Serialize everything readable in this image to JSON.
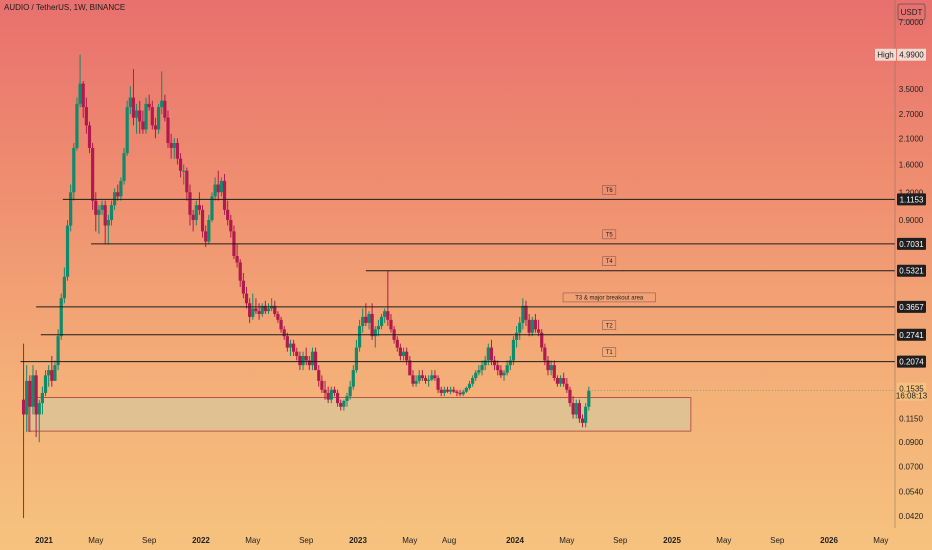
{
  "header": {
    "title": "AUDIO / TetherUS, 1W, BINANCE",
    "currency": "USDT"
  },
  "colors": {
    "up": "#0f8a6a",
    "down": "#b01a4e",
    "line": "#1c1c1c",
    "zone_fill": "#d9c59a",
    "zone_border": "#b23a3a",
    "price_tag": "#f6c27e"
  },
  "chart_data": {
    "type": "candlestick",
    "title": "AUDIO / TetherUS, 1W, BINANCE",
    "yscale": "log",
    "ylim": [
      0.037,
      8.8
    ],
    "y_ticks": [
      7.0,
      3.5,
      2.7,
      2.1,
      1.6,
      1.2,
      0.9,
      0.115,
      0.09,
      0.07,
      0.054,
      0.042
    ],
    "y_tick_labels": [
      "7.0000",
      "3.5000",
      "2.7000",
      "2.1000",
      "1.6000",
      "1.2000",
      "0.9000",
      "0.1150",
      "0.0900",
      "0.0700",
      "0.0540",
      "0.0420"
    ],
    "x_tick_labels": [
      "2021",
      "May",
      "Sep",
      "2022",
      "May",
      "Sep",
      "2023",
      "May",
      "Aug",
      "2024",
      "May",
      "Sep",
      "2025",
      "May",
      "Sep",
      "2026",
      "May"
    ],
    "x_tick_dates": [
      2021.0,
      2021.33,
      2021.67,
      2022.0,
      2022.33,
      2022.67,
      2023.0,
      2023.33,
      2023.58,
      2024.0,
      2024.33,
      2024.67,
      2025.0,
      2025.33,
      2025.67,
      2026.0,
      2026.33
    ],
    "high_marker": {
      "label": "High",
      "value": "4.9900"
    },
    "current_price": {
      "value": "0.1535",
      "countdown": "16:08:13"
    },
    "targets": [
      {
        "name": "T6",
        "value": "1.1153",
        "start": 2021.12
      },
      {
        "name": "T5",
        "value": "0.7031",
        "start": 2021.3
      },
      {
        "name": "T4",
        "value": "0.5321",
        "start": 2023.05
      },
      {
        "name": "T3 & major breakout area",
        "value": "0.3657",
        "start": 2020.95
      },
      {
        "name": "T2",
        "value": "0.2741",
        "start": 2020.98
      },
      {
        "name": "T1",
        "value": "0.2074",
        "start": 2020.85
      }
    ],
    "zone": {
      "low": 0.101,
      "high": 0.143,
      "start": 2020.9,
      "end": 2025.12
    },
    "candles_ohlc_weekly": [
      [
        2020.87,
        0.14,
        0.25,
        0.041,
        0.12
      ],
      [
        2020.89,
        0.12,
        0.2,
        0.1,
        0.17
      ],
      [
        2020.91,
        0.17,
        0.18,
        0.1,
        0.13
      ],
      [
        2020.93,
        0.13,
        0.2,
        0.12,
        0.18
      ],
      [
        2020.95,
        0.18,
        0.19,
        0.095,
        0.12
      ],
      [
        2020.97,
        0.12,
        0.14,
        0.09,
        0.135
      ],
      [
        2020.99,
        0.135,
        0.16,
        0.12,
        0.15
      ],
      [
        2021.01,
        0.15,
        0.19,
        0.145,
        0.18
      ],
      [
        2021.03,
        0.18,
        0.2,
        0.16,
        0.19
      ],
      [
        2021.05,
        0.19,
        0.22,
        0.16,
        0.17
      ],
      [
        2021.07,
        0.17,
        0.21,
        0.17,
        0.2
      ],
      [
        2021.09,
        0.2,
        0.29,
        0.19,
        0.27
      ],
      [
        2021.11,
        0.27,
        0.42,
        0.26,
        0.4
      ],
      [
        2021.13,
        0.4,
        0.55,
        0.38,
        0.5
      ],
      [
        2021.15,
        0.5,
        0.9,
        0.48,
        0.85
      ],
      [
        2021.17,
        0.85,
        1.3,
        0.8,
        1.2
      ],
      [
        2021.19,
        1.2,
        2.0,
        1.1,
        1.9
      ],
      [
        2021.21,
        1.9,
        3.2,
        1.85,
        3.0
      ],
      [
        2021.23,
        3.0,
        4.99,
        2.9,
        3.7
      ],
      [
        2021.25,
        3.7,
        3.8,
        2.6,
        2.9
      ],
      [
        2021.27,
        2.9,
        3.2,
        2.2,
        2.4
      ],
      [
        2021.29,
        2.4,
        2.5,
        1.8,
        1.9
      ],
      [
        2021.31,
        1.9,
        2.0,
        1.0,
        1.1
      ],
      [
        2021.33,
        1.1,
        1.2,
        0.8,
        0.95
      ],
      [
        2021.35,
        0.95,
        1.05,
        0.78,
        1.0
      ],
      [
        2021.37,
        1.0,
        1.1,
        0.95,
        1.05
      ],
      [
        2021.39,
        1.05,
        1.1,
        0.7,
        0.85
      ],
      [
        2021.41,
        0.85,
        0.95,
        0.7,
        0.9
      ],
      [
        2021.43,
        0.9,
        1.1,
        0.85,
        1.05
      ],
      [
        2021.45,
        1.05,
        1.25,
        1.0,
        1.2
      ],
      [
        2021.47,
        1.2,
        1.3,
        1.1,
        1.15
      ],
      [
        2021.49,
        1.15,
        1.4,
        1.1,
        1.35
      ],
      [
        2021.51,
        1.35,
        1.9,
        1.3,
        1.8
      ],
      [
        2021.53,
        1.8,
        3.1,
        1.75,
        2.9
      ],
      [
        2021.55,
        2.9,
        3.6,
        2.7,
        3.2
      ],
      [
        2021.57,
        3.2,
        4.3,
        2.4,
        2.6
      ],
      [
        2021.59,
        2.6,
        3.0,
        2.2,
        2.8
      ],
      [
        2021.61,
        2.8,
        3.1,
        2.2,
        2.5
      ],
      [
        2021.63,
        2.5,
        2.8,
        2.2,
        2.3
      ],
      [
        2021.65,
        2.3,
        3.2,
        2.2,
        3.0
      ],
      [
        2021.67,
        3.0,
        3.3,
        2.8,
        2.9
      ],
      [
        2021.69,
        2.9,
        3.1,
        2.3,
        2.4
      ],
      [
        2021.71,
        2.4,
        2.6,
        2.1,
        2.3
      ],
      [
        2021.73,
        2.3,
        3.0,
        2.2,
        2.9
      ],
      [
        2021.75,
        2.9,
        4.2,
        2.7,
        3.1
      ],
      [
        2021.77,
        3.1,
        3.3,
        2.5,
        2.6
      ],
      [
        2021.79,
        2.6,
        2.8,
        1.9,
        2.0
      ],
      [
        2021.81,
        2.0,
        2.2,
        1.7,
        1.9
      ],
      [
        2021.83,
        1.9,
        2.1,
        1.7,
        2.0
      ],
      [
        2021.85,
        2.0,
        2.1,
        1.6,
        1.7
      ],
      [
        2021.87,
        1.7,
        1.8,
        1.4,
        1.5
      ],
      [
        2021.89,
        1.5,
        1.6,
        1.3,
        1.5
      ],
      [
        2021.91,
        1.5,
        1.55,
        1.1,
        1.2
      ],
      [
        2021.93,
        1.2,
        1.3,
        0.85,
        0.95
      ],
      [
        2021.95,
        0.95,
        1.0,
        0.8,
        0.9
      ],
      [
        2021.97,
        0.9,
        1.1,
        0.85,
        1.05
      ],
      [
        2021.99,
        1.05,
        1.2,
        0.95,
        1.0
      ],
      [
        2022.01,
        1.0,
        1.05,
        0.75,
        0.8
      ],
      [
        2022.03,
        0.8,
        0.85,
        0.68,
        0.72
      ],
      [
        2022.05,
        0.72,
        0.95,
        0.7,
        0.9
      ],
      [
        2022.07,
        0.9,
        1.2,
        0.88,
        1.15
      ],
      [
        2022.09,
        1.15,
        1.4,
        1.1,
        1.3
      ],
      [
        2022.11,
        1.3,
        1.5,
        1.1,
        1.2
      ],
      [
        2022.13,
        1.2,
        1.4,
        1.15,
        1.35
      ],
      [
        2022.15,
        1.35,
        1.45,
        0.95,
        1.0
      ],
      [
        2022.17,
        1.0,
        1.1,
        0.85,
        0.9
      ],
      [
        2022.19,
        0.9,
        0.95,
        0.75,
        0.8
      ],
      [
        2022.21,
        0.8,
        0.85,
        0.6,
        0.62
      ],
      [
        2022.23,
        0.62,
        0.7,
        0.55,
        0.58
      ],
      [
        2022.25,
        0.58,
        0.6,
        0.45,
        0.48
      ],
      [
        2022.27,
        0.48,
        0.52,
        0.4,
        0.42
      ],
      [
        2022.29,
        0.42,
        0.45,
        0.36,
        0.38
      ],
      [
        2022.31,
        0.38,
        0.4,
        0.31,
        0.33
      ],
      [
        2022.33,
        0.33,
        0.42,
        0.32,
        0.36
      ],
      [
        2022.35,
        0.36,
        0.4,
        0.34,
        0.35
      ],
      [
        2022.37,
        0.35,
        0.38,
        0.32,
        0.34
      ],
      [
        2022.39,
        0.34,
        0.38,
        0.33,
        0.37
      ],
      [
        2022.41,
        0.37,
        0.39,
        0.34,
        0.35
      ],
      [
        2022.43,
        0.35,
        0.38,
        0.34,
        0.36
      ],
      [
        2022.45,
        0.36,
        0.4,
        0.35,
        0.37
      ],
      [
        2022.47,
        0.37,
        0.39,
        0.33,
        0.34
      ],
      [
        2022.49,
        0.34,
        0.35,
        0.31,
        0.32
      ],
      [
        2022.51,
        0.32,
        0.33,
        0.28,
        0.29
      ],
      [
        2022.53,
        0.29,
        0.3,
        0.26,
        0.27
      ],
      [
        2022.55,
        0.27,
        0.28,
        0.23,
        0.24
      ],
      [
        2022.57,
        0.24,
        0.26,
        0.22,
        0.25
      ],
      [
        2022.59,
        0.25,
        0.26,
        0.22,
        0.23
      ],
      [
        2022.61,
        0.23,
        0.24,
        0.21,
        0.22
      ],
      [
        2022.63,
        0.22,
        0.23,
        0.19,
        0.2
      ],
      [
        2022.65,
        0.2,
        0.23,
        0.19,
        0.22
      ],
      [
        2022.67,
        0.22,
        0.24,
        0.2,
        0.21
      ],
      [
        2022.69,
        0.21,
        0.22,
        0.19,
        0.2
      ],
      [
        2022.71,
        0.2,
        0.24,
        0.19,
        0.23
      ],
      [
        2022.73,
        0.23,
        0.24,
        0.19,
        0.19
      ],
      [
        2022.75,
        0.19,
        0.2,
        0.16,
        0.17
      ],
      [
        2022.77,
        0.17,
        0.18,
        0.15,
        0.155
      ],
      [
        2022.79,
        0.155,
        0.17,
        0.14,
        0.15
      ],
      [
        2022.81,
        0.15,
        0.16,
        0.135,
        0.14
      ],
      [
        2022.83,
        0.14,
        0.16,
        0.135,
        0.155
      ],
      [
        2022.85,
        0.155,
        0.16,
        0.145,
        0.15
      ],
      [
        2022.87,
        0.15,
        0.155,
        0.13,
        0.135
      ],
      [
        2022.89,
        0.135,
        0.14,
        0.125,
        0.13
      ],
      [
        2022.91,
        0.13,
        0.14,
        0.125,
        0.138
      ],
      [
        2022.93,
        0.138,
        0.15,
        0.13,
        0.145
      ],
      [
        2022.95,
        0.145,
        0.17,
        0.14,
        0.16
      ],
      [
        2022.97,
        0.16,
        0.2,
        0.155,
        0.19
      ],
      [
        2022.99,
        0.19,
        0.26,
        0.185,
        0.24
      ],
      [
        2023.01,
        0.24,
        0.32,
        0.23,
        0.3
      ],
      [
        2023.03,
        0.3,
        0.36,
        0.28,
        0.33
      ],
      [
        2023.05,
        0.33,
        0.38,
        0.3,
        0.31
      ],
      [
        2023.07,
        0.31,
        0.35,
        0.29,
        0.34
      ],
      [
        2023.09,
        0.34,
        0.38,
        0.26,
        0.27
      ],
      [
        2023.11,
        0.27,
        0.3,
        0.24,
        0.29
      ],
      [
        2023.13,
        0.29,
        0.32,
        0.27,
        0.3
      ],
      [
        2023.15,
        0.3,
        0.34,
        0.29,
        0.33
      ],
      [
        2023.17,
        0.33,
        0.36,
        0.31,
        0.35
      ],
      [
        2023.19,
        0.35,
        0.53,
        0.3,
        0.32
      ],
      [
        2023.21,
        0.32,
        0.34,
        0.28,
        0.29
      ],
      [
        2023.23,
        0.29,
        0.3,
        0.25,
        0.26
      ],
      [
        2023.25,
        0.26,
        0.27,
        0.23,
        0.24
      ],
      [
        2023.27,
        0.24,
        0.25,
        0.21,
        0.22
      ],
      [
        2023.29,
        0.22,
        0.24,
        0.21,
        0.23
      ],
      [
        2023.31,
        0.23,
        0.24,
        0.2,
        0.21
      ],
      [
        2023.33,
        0.21,
        0.22,
        0.18,
        0.18
      ],
      [
        2023.35,
        0.18,
        0.19,
        0.16,
        0.165
      ],
      [
        2023.37,
        0.165,
        0.18,
        0.16,
        0.17
      ],
      [
        2023.39,
        0.17,
        0.19,
        0.165,
        0.18
      ],
      [
        2023.41,
        0.18,
        0.19,
        0.17,
        0.175
      ],
      [
        2023.43,
        0.175,
        0.18,
        0.165,
        0.17
      ],
      [
        2023.45,
        0.17,
        0.18,
        0.16,
        0.172
      ],
      [
        2023.47,
        0.172,
        0.19,
        0.17,
        0.18
      ],
      [
        2023.49,
        0.18,
        0.19,
        0.17,
        0.175
      ],
      [
        2023.51,
        0.175,
        0.18,
        0.15,
        0.155
      ],
      [
        2023.53,
        0.155,
        0.16,
        0.145,
        0.15
      ],
      [
        2023.55,
        0.15,
        0.16,
        0.145,
        0.155
      ],
      [
        2023.57,
        0.155,
        0.16,
        0.15,
        0.152
      ],
      [
        2023.59,
        0.152,
        0.16,
        0.148,
        0.155
      ],
      [
        2023.61,
        0.155,
        0.16,
        0.15,
        0.152
      ],
      [
        2023.63,
        0.152,
        0.155,
        0.145,
        0.15
      ],
      [
        2023.65,
        0.15,
        0.155,
        0.145,
        0.148
      ],
      [
        2023.67,
        0.148,
        0.155,
        0.145,
        0.152
      ],
      [
        2023.69,
        0.152,
        0.16,
        0.15,
        0.158
      ],
      [
        2023.71,
        0.158,
        0.17,
        0.155,
        0.165
      ],
      [
        2023.73,
        0.165,
        0.18,
        0.16,
        0.175
      ],
      [
        2023.75,
        0.175,
        0.19,
        0.17,
        0.185
      ],
      [
        2023.77,
        0.185,
        0.2,
        0.18,
        0.19
      ],
      [
        2023.79,
        0.19,
        0.21,
        0.18,
        0.2
      ],
      [
        2023.81,
        0.2,
        0.22,
        0.19,
        0.21
      ],
      [
        2023.83,
        0.21,
        0.25,
        0.2,
        0.24
      ],
      [
        2023.85,
        0.24,
        0.26,
        0.2,
        0.21
      ],
      [
        2023.87,
        0.21,
        0.22,
        0.19,
        0.2
      ],
      [
        2023.89,
        0.2,
        0.21,
        0.18,
        0.19
      ],
      [
        2023.91,
        0.19,
        0.2,
        0.175,
        0.18
      ],
      [
        2023.93,
        0.18,
        0.19,
        0.17,
        0.185
      ],
      [
        2023.95,
        0.185,
        0.21,
        0.18,
        0.2
      ],
      [
        2023.97,
        0.2,
        0.22,
        0.19,
        0.21
      ],
      [
        2023.99,
        0.21,
        0.27,
        0.2,
        0.26
      ],
      [
        2024.01,
        0.26,
        0.3,
        0.24,
        0.28
      ],
      [
        2024.03,
        0.28,
        0.33,
        0.26,
        0.31
      ],
      [
        2024.05,
        0.31,
        0.4,
        0.29,
        0.37
      ],
      [
        2024.07,
        0.37,
        0.39,
        0.3,
        0.32
      ],
      [
        2024.09,
        0.32,
        0.34,
        0.27,
        0.28
      ],
      [
        2024.11,
        0.28,
        0.33,
        0.27,
        0.32
      ],
      [
        2024.13,
        0.32,
        0.34,
        0.28,
        0.29
      ],
      [
        2024.15,
        0.29,
        0.32,
        0.27,
        0.28
      ],
      [
        2024.17,
        0.28,
        0.29,
        0.23,
        0.24
      ],
      [
        2024.19,
        0.24,
        0.25,
        0.2,
        0.21
      ],
      [
        2024.21,
        0.21,
        0.22,
        0.18,
        0.19
      ],
      [
        2024.23,
        0.19,
        0.21,
        0.18,
        0.2
      ],
      [
        2024.25,
        0.2,
        0.21,
        0.17,
        0.175
      ],
      [
        2024.27,
        0.175,
        0.18,
        0.16,
        0.165
      ],
      [
        2024.29,
        0.165,
        0.18,
        0.16,
        0.175
      ],
      [
        2024.31,
        0.175,
        0.185,
        0.16,
        0.165
      ],
      [
        2024.33,
        0.165,
        0.175,
        0.15,
        0.155
      ],
      [
        2024.35,
        0.155,
        0.16,
        0.13,
        0.135
      ],
      [
        2024.37,
        0.135,
        0.145,
        0.115,
        0.12
      ],
      [
        2024.39,
        0.12,
        0.14,
        0.115,
        0.135
      ],
      [
        2024.41,
        0.135,
        0.14,
        0.11,
        0.115
      ],
      [
        2024.43,
        0.115,
        0.12,
        0.105,
        0.11
      ],
      [
        2024.45,
        0.11,
        0.135,
        0.105,
        0.13
      ],
      [
        2024.47,
        0.13,
        0.16,
        0.125,
        0.1535
      ]
    ]
  }
}
